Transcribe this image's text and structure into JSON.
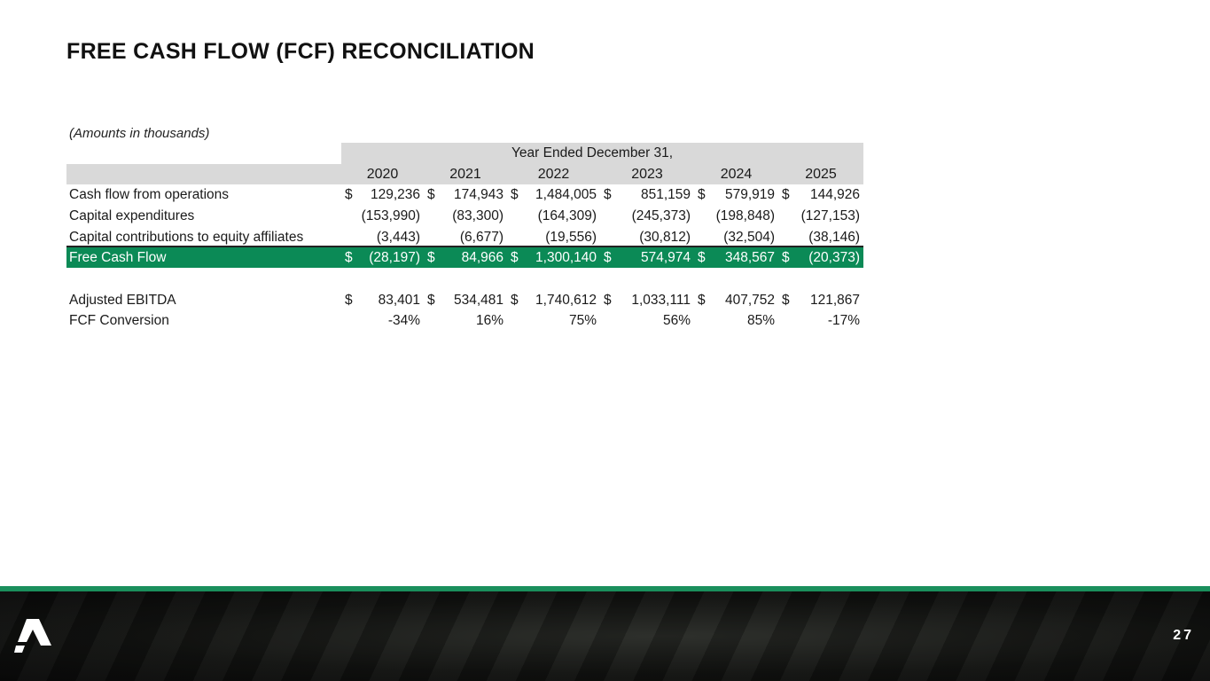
{
  "title": "FREE CASH FLOW (FCF) RECONCILIATION",
  "note": "(Amounts in thousands)",
  "table": {
    "group_header": "Year Ended December 31,",
    "years": [
      "2020",
      "2021",
      "2022",
      "2023",
      "2024",
      "2025"
    ],
    "rows": [
      {
        "label": "Cash flow from operations",
        "cells": [
          {
            "d": "$",
            "v": "129,236"
          },
          {
            "d": "$",
            "v": "174,943"
          },
          {
            "d": "$",
            "v": "1,484,005"
          },
          {
            "d": "$",
            "v": "851,159"
          },
          {
            "d": "$",
            "v": "579,919"
          },
          {
            "d": "$",
            "v": "144,926"
          }
        ]
      },
      {
        "label": "Capital expenditures",
        "cells": [
          {
            "v": "(153,990)"
          },
          {
            "v": "(83,300)"
          },
          {
            "v": "(164,309)"
          },
          {
            "v": "(245,373)"
          },
          {
            "v": "(198,848)"
          },
          {
            "v": "(127,153)"
          }
        ]
      },
      {
        "label": "Capital contributions to equity affiliates",
        "cells": [
          {
            "v": "(3,443)"
          },
          {
            "v": "(6,677)"
          },
          {
            "v": "(19,556)"
          },
          {
            "v": "(30,812)"
          },
          {
            "v": "(32,504)"
          },
          {
            "v": "(38,146)"
          }
        ]
      },
      {
        "label": "Free Cash Flow",
        "cells": [
          {
            "d": "$",
            "v": "(28,197)"
          },
          {
            "d": "$",
            "v": "84,966"
          },
          {
            "d": "$",
            "v": "1,300,140"
          },
          {
            "d": "$",
            "v": "574,974"
          },
          {
            "d": "$",
            "v": "348,567"
          },
          {
            "d": "$",
            "v": "(20,373)"
          }
        ]
      },
      {
        "label": "Adjusted EBITDA",
        "cells": [
          {
            "d": "$",
            "v": "83,401"
          },
          {
            "d": "$",
            "v": "534,481"
          },
          {
            "d": "$",
            "v": "1,740,612"
          },
          {
            "d": "$",
            "v": "1,033,111"
          },
          {
            "d": "$",
            "v": "407,752"
          },
          {
            "d": "$",
            "v": "121,867"
          }
        ]
      },
      {
        "label": "FCF Conversion",
        "cells": [
          {
            "v": "-34%"
          },
          {
            "v": "16%"
          },
          {
            "v": "75%"
          },
          {
            "v": "56%"
          },
          {
            "v": "85%"
          },
          {
            "v": "-17%"
          }
        ]
      }
    ]
  },
  "page_number": "27",
  "colors": {
    "accent": "#0b8a56",
    "header_bg": "#d9d9d9"
  }
}
